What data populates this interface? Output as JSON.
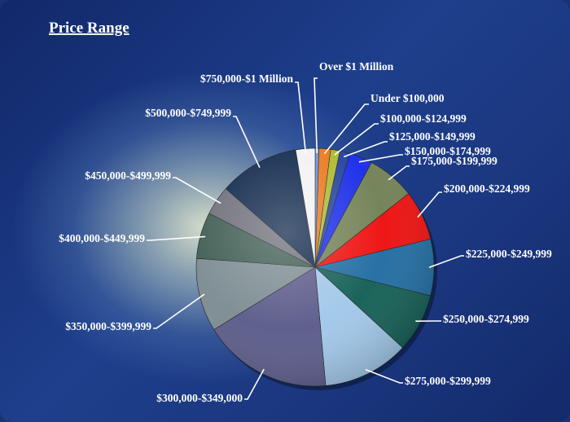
{
  "chart_data": {
    "type": "pie",
    "title": "Price Range",
    "categories": [
      "Over $1 Million",
      "Under $100,000",
      "$100,000-$124,999",
      "$125,000-$149,999",
      "$150,000-$174,999",
      "$175,000-$199,999",
      "$200,000-$224,999",
      "$225,000-$249,999",
      "$250,000-$274,999",
      "$275,000-$299,999",
      "$300,000-$349,000",
      "$350,000-$399,999",
      "$400,000-$449,999",
      "$450,000-$499,999",
      "$500,000-$749,999",
      "$750,000-$1 Million"
    ],
    "values": [
      0.5,
      1.5,
      1.2,
      1.3,
      3.0,
      6.2,
      6.5,
      7.3,
      7.6,
      11.2,
      16.8,
      9.5,
      6.0,
      3.8,
      10.4,
      2.5
    ],
    "colors": [
      "#6b8fd8",
      "#e8761a",
      "#aab82a",
      "#1f3f9e",
      "#1428e8",
      "#6f7e52",
      "#ee0a0a",
      "#1c6aa0",
      "#0f5c52",
      "#9fc6e8",
      "#585888",
      "#7a8a90",
      "#3c5a50",
      "#6c6c78",
      "#0b2448",
      "#f2f2f2"
    ]
  }
}
